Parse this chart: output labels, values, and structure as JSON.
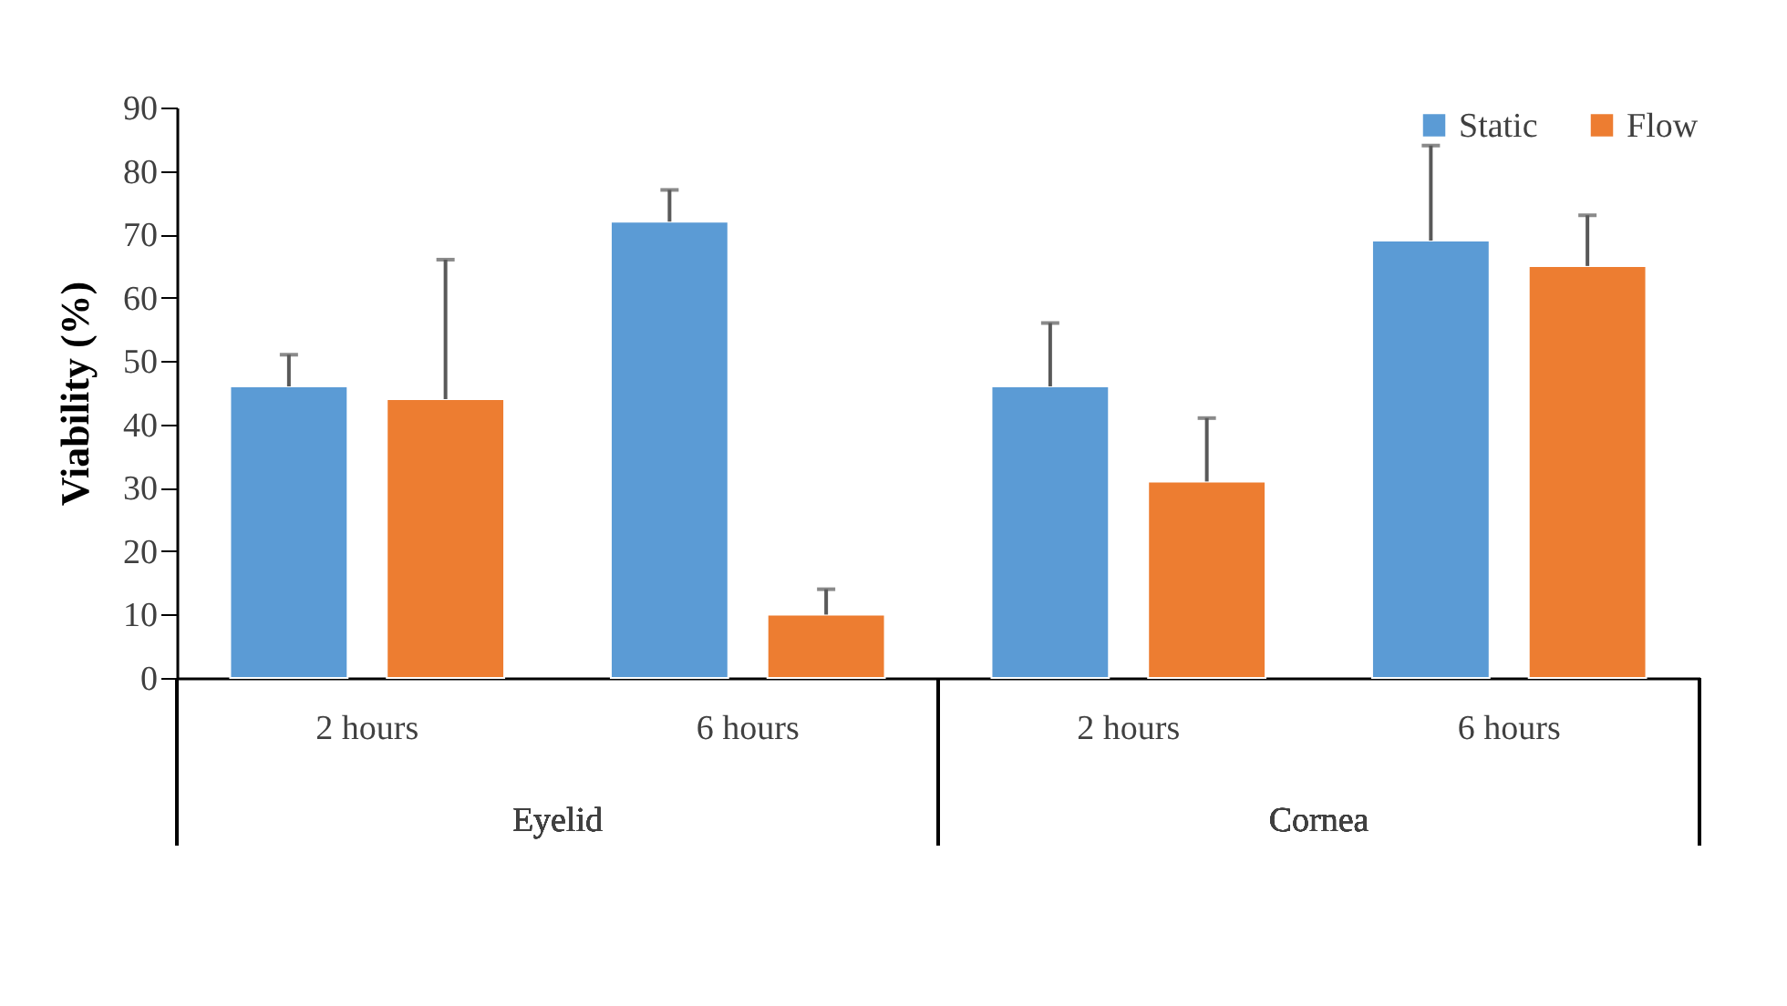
{
  "chart_data": {
    "type": "bar",
    "ylabel": "Viability (%)",
    "categories": [
      "2 hours",
      "6 hours",
      "2 hours",
      "6 hours"
    ],
    "annotations": [
      "Eyelid",
      "Cornea"
    ],
    "series": [
      {
        "name": "Static",
        "color": "#5b9bd5",
        "values": [
          46,
          72,
          46,
          69
        ],
        "errors": [
          [
            46,
            51
          ],
          [
            72,
            77
          ],
          [
            46,
            56
          ],
          [
            69,
            84
          ]
        ]
      },
      {
        "name": "Flow",
        "color": "#ed7d31",
        "values": [
          44,
          10,
          31,
          65
        ],
        "errors": [
          [
            44,
            66
          ],
          [
            10,
            14
          ],
          [
            31,
            41
          ],
          [
            65,
            73
          ]
        ]
      }
    ],
    "ylim": [
      0,
      90
    ],
    "yticks": [
      0,
      10,
      20,
      30,
      40,
      50,
      60,
      70,
      80,
      90
    ],
    "grid": false,
    "legend": "top right"
  }
}
